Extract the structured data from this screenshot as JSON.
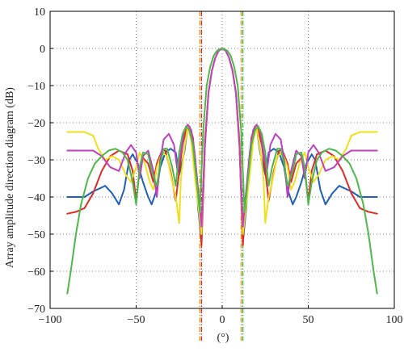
{
  "chart_data": {
    "type": "line",
    "title": "",
    "xlabel": "(°)",
    "ylabel": "Array amplitude direction diagram (dB)",
    "xlim": [
      -100,
      100
    ],
    "ylim": [
      -70,
      10
    ],
    "xticks": [
      -100,
      -50,
      0,
      50,
      100
    ],
    "yticks": [
      10,
      0,
      -10,
      -20,
      -30,
      -40,
      -50,
      -60,
      -70
    ],
    "grid": true,
    "grid_style": "dotted",
    "vertical_markers": [
      {
        "x": -13,
        "color": "#e0a020"
      },
      {
        "x": -12,
        "color": "#cc3333"
      },
      {
        "x": 11,
        "color": "#e0a020"
      },
      {
        "x": 12,
        "color": "#3cb34a"
      }
    ],
    "series": [
      {
        "color": "#1f5fb4",
        "x": [
          -90,
          -80,
          -75,
          -68,
          -64,
          -60,
          -57,
          -54,
          -52,
          -49,
          -46,
          -43,
          -41,
          -38,
          -36,
          -33,
          -30,
          -27,
          -25,
          -22,
          -20,
          -18,
          -16,
          -14,
          -12,
          -10,
          -8,
          -6,
          -4,
          -2,
          0,
          2,
          4,
          6,
          8,
          10,
          12,
          14,
          16,
          18,
          20,
          22,
          25,
          27,
          30,
          33,
          36,
          38,
          41,
          43,
          46,
          49,
          52,
          54,
          57,
          60,
          64,
          68,
          75,
          80,
          90
        ],
        "y": [
          -40,
          -40,
          -38.5,
          -37,
          -39,
          -42,
          -38,
          -30,
          -28.5,
          -31,
          -36,
          -40,
          -42,
          -38,
          -32,
          -28,
          -27,
          -28,
          -34,
          -28,
          -21,
          -23,
          -29,
          -43,
          -52,
          -25,
          -12,
          -6,
          -2.5,
          -0.6,
          0,
          -0.6,
          -2.5,
          -6,
          -12,
          -25,
          -52,
          -43,
          -29,
          -23,
          -21,
          -28,
          -34,
          -28,
          -27,
          -28,
          -32,
          -38,
          -42,
          -40,
          -36,
          -31,
          -28.5,
          -30,
          -38,
          -42,
          -39,
          -37,
          -38.5,
          -40,
          -40
        ]
      },
      {
        "color": "#dd2a2a",
        "x": [
          -90,
          -85,
          -80,
          -75,
          -70,
          -65,
          -60,
          -55,
          -52,
          -50,
          -48,
          -46,
          -43,
          -40,
          -38,
          -35,
          -33,
          -30,
          -27,
          -25,
          -23,
          -21,
          -19,
          -17,
          -15,
          -13,
          -12,
          -10,
          -8,
          -6,
          -4,
          -2,
          0,
          2,
          4,
          6,
          8,
          10,
          12,
          13,
          15,
          17,
          19,
          21,
          23,
          25,
          27,
          30,
          33,
          35,
          38,
          40,
          43,
          46,
          48,
          50,
          52,
          55,
          60,
          65,
          70,
          75,
          80,
          85,
          90
        ],
        "y": [
          -44.5,
          -44,
          -43,
          -39,
          -33,
          -29,
          -27.5,
          -28.5,
          -33,
          -41,
          -33,
          -29.5,
          -31,
          -36,
          -31,
          -27.5,
          -27.5,
          -33,
          -41,
          -33,
          -26,
          -22,
          -21,
          -24,
          -34,
          -45,
          -53,
          -26,
          -12,
          -6,
          -2.5,
          -0.6,
          0,
          -0.6,
          -2.5,
          -6,
          -12,
          -26,
          -53,
          -45,
          -34,
          -24,
          -21,
          -22,
          -26,
          -33,
          -41,
          -33,
          -27.5,
          -27.5,
          -31,
          -36,
          -31,
          -29.5,
          -33,
          -41,
          -33,
          -28.5,
          -27.5,
          -29,
          -33,
          -39,
          -43,
          -44,
          -44.5
        ]
      },
      {
        "color": "#f0e01a",
        "x": [
          -90,
          -80,
          -75,
          -72,
          -68,
          -64,
          -60,
          -56,
          -53,
          -50,
          -48,
          -45,
          -42,
          -40,
          -38,
          -35,
          -32,
          -29,
          -27,
          -25,
          -24,
          -22,
          -20,
          -18,
          -16,
          -14,
          -12,
          -10,
          -8,
          -6,
          -4,
          -2,
          0,
          2,
          4,
          6,
          8,
          10,
          12,
          14,
          16,
          18,
          20,
          22,
          24,
          25,
          27,
          29,
          32,
          35,
          38,
          40,
          42,
          45,
          48,
          50,
          53,
          56,
          60,
          64,
          68,
          72,
          75,
          80,
          90
        ],
        "y": [
          -22.5,
          -22.5,
          -23.5,
          -27,
          -30,
          -29,
          -30,
          -34,
          -36,
          -32,
          -28,
          -31,
          -36,
          -38,
          -32,
          -28,
          -29,
          -36,
          -40,
          -47,
          -35,
          -27,
          -21,
          -25,
          -34,
          -42,
          -50,
          -24,
          -12,
          -6,
          -2.5,
          -0.6,
          0,
          -0.6,
          -2.5,
          -6,
          -12,
          -24,
          -50,
          -42,
          -34,
          -25,
          -21,
          -27,
          -35,
          -47,
          -40,
          -36,
          -29,
          -28,
          -32,
          -38,
          -36,
          -31,
          -28,
          -32,
          -36,
          -34,
          -30,
          -29,
          -30,
          -27,
          -23.5,
          -22.5,
          -22.5
        ]
      },
      {
        "color": "#c040c0",
        "x": [
          -90,
          -80,
          -75,
          -70,
          -65,
          -60,
          -56,
          -53,
          -50,
          -48,
          -46,
          -43,
          -40,
          -38,
          -36,
          -34,
          -31,
          -28,
          -26,
          -24,
          -22,
          -20,
          -18,
          -16,
          -14,
          -12,
          -10,
          -8,
          -6,
          -4,
          -2,
          0,
          2,
          4,
          6,
          8,
          10,
          12,
          14,
          16,
          18,
          20,
          22,
          24,
          26,
          28,
          31,
          34,
          36,
          38,
          40,
          43,
          46,
          48,
          50,
          53,
          56,
          60,
          65,
          70,
          75,
          80,
          90
        ],
        "y": [
          -27.5,
          -27.5,
          -27.5,
          -29,
          -32,
          -33,
          -28,
          -26,
          -28,
          -35,
          -29,
          -27.5,
          -33,
          -40,
          -30,
          -24.5,
          -23,
          -26,
          -33,
          -28,
          -22,
          -20.5,
          -22,
          -28,
          -38,
          -48,
          -25,
          -12,
          -6,
          -2.5,
          -0.6,
          0,
          -0.6,
          -2.5,
          -6,
          -12,
          -25,
          -48,
          -38,
          -28,
          -22,
          -20.5,
          -22,
          -28,
          -33,
          -26,
          -23,
          -24.5,
          -30,
          -40,
          -33,
          -27.5,
          -29,
          -35,
          -28,
          -26,
          -28,
          -33,
          -32,
          -29,
          -27.5,
          -27.5,
          -27.5
        ]
      },
      {
        "color": "#4db84a",
        "x": [
          -90,
          -88,
          -85,
          -82,
          -78,
          -74,
          -70,
          -66,
          -62,
          -58,
          -55,
          -52,
          -50,
          -48,
          -46,
          -43,
          -41,
          -38,
          -36,
          -34,
          -32,
          -29,
          -27,
          -25,
          -23,
          -21,
          -19,
          -17,
          -15,
          -13,
          -11,
          -9,
          -7,
          -5,
          -3,
          -1,
          0,
          1,
          3,
          5,
          7,
          9,
          11,
          13,
          15,
          17,
          19,
          21,
          23,
          25,
          27,
          29,
          32,
          34,
          36,
          38,
          41,
          43,
          46,
          48,
          50,
          52,
          55,
          58,
          62,
          66,
          70,
          74,
          78,
          82,
          85,
          88,
          90
        ],
        "y": [
          -66,
          -60,
          -50,
          -42,
          -35,
          -31,
          -29,
          -27.5,
          -27,
          -28,
          -30,
          -36,
          -42,
          -32,
          -28,
          -28.5,
          -33,
          -37,
          -31,
          -27,
          -27,
          -32,
          -37,
          -28,
          -23,
          -21,
          -22,
          -26,
          -35,
          -44,
          -22,
          -10,
          -5,
          -2,
          -0.6,
          -0.1,
          0,
          -0.1,
          -0.6,
          -2,
          -5,
          -10,
          -22,
          -44,
          -35,
          -26,
          -22,
          -21,
          -23,
          -28,
          -37,
          -32,
          -27,
          -27,
          -31,
          -37,
          -33,
          -28.5,
          -28,
          -32,
          -42,
          -36,
          -30,
          -28,
          -27,
          -27.5,
          -29,
          -31,
          -35,
          -42,
          -50,
          -60,
          -66
        ]
      }
    ]
  }
}
